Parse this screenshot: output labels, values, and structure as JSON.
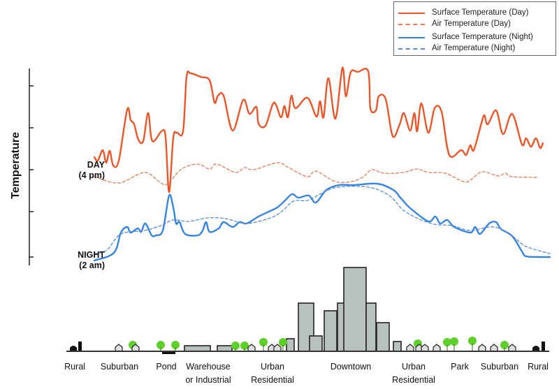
{
  "legend": {
    "items": [
      {
        "label": "Surface Temperature (Day)",
        "color": "#e8562a",
        "style": "solid"
      },
      {
        "label": "Air Temperature  (Day)",
        "color": "#e27a58",
        "style": "dashed"
      },
      {
        "label": "Surface Temperature (Night)",
        "color": "#3684e0",
        "style": "solid"
      },
      {
        "label": "Air Temperature (Night)",
        "color": "#5a8ad6",
        "style": "dashed"
      }
    ]
  },
  "axis": {
    "ylabel": "Temperature",
    "day_label": [
      "DAY",
      "(4 pm)"
    ],
    "night_label": [
      "NIGHT",
      "(2 am)"
    ]
  },
  "zones": [
    {
      "lines": [
        "Rural"
      ]
    },
    {
      "lines": [
        "Suburban"
      ]
    },
    {
      "lines": [
        "Pond"
      ]
    },
    {
      "lines": [
        "Warehouse",
        "or Industrial"
      ]
    },
    {
      "lines": [
        "Urban",
        "Residential"
      ]
    },
    {
      "lines": [
        "Downtown"
      ]
    },
    {
      "lines": [
        "Urban",
        "Residential"
      ]
    },
    {
      "lines": [
        "Park"
      ]
    },
    {
      "lines": [
        "Suburban"
      ]
    },
    {
      "lines": [
        "Rural"
      ]
    }
  ],
  "colors": {
    "building_fill": "#b9c1c0",
    "building_stroke": "#222222",
    "tree": "#5fcf2a"
  },
  "chart_data": {
    "type": "line",
    "xlabel": "",
    "ylabel": "Temperature",
    "xlim": [
      0,
      130.4
    ],
    "ylim": [
      -4,
      112
    ],
    "yticks": [
      0,
      26,
      50,
      74,
      98
    ],
    "grid": false,
    "legend_position": "top-right",
    "series": [
      {
        "name": "Surface Temperature (Day)",
        "points": [
          [
            0,
            57.2
          ],
          [
            1,
            55.2
          ],
          [
            2.4,
            61.2
          ],
          [
            3.4,
            54
          ],
          [
            4.4,
            60.8
          ],
          [
            5.4,
            52.4
          ],
          [
            7,
            55.2
          ],
          [
            9.4,
            84.4
          ],
          [
            10.4,
            78.4
          ],
          [
            11.4,
            76
          ],
          [
            12.6,
            67.2
          ],
          [
            14,
            66.4
          ],
          [
            15.4,
            82.4
          ],
          [
            16.6,
            66.4
          ],
          [
            19.4,
            72.4
          ],
          [
            20.4,
            68.4
          ],
          [
            21.4,
            37.2
          ],
          [
            22.6,
            68.4
          ],
          [
            23.6,
            71.2
          ],
          [
            25.4,
            72
          ],
          [
            26.4,
            103.2
          ],
          [
            27.6,
            105.2
          ],
          [
            30.4,
            103.2
          ],
          [
            33,
            101.2
          ],
          [
            34.4,
            88.4
          ],
          [
            35.4,
            92.4
          ],
          [
            37,
            92.4
          ],
          [
            39.6,
            72.4
          ],
          [
            42.6,
            90
          ],
          [
            44.4,
            82
          ],
          [
            46.4,
            86
          ],
          [
            47,
            76.4
          ],
          [
            49,
            75.2
          ],
          [
            51.4,
            88.4
          ],
          [
            53.4,
            80
          ],
          [
            54.4,
            86.4
          ],
          [
            55.4,
            80
          ],
          [
            56.4,
            92.4
          ],
          [
            57.6,
            85.2
          ],
          [
            61,
            91.2
          ],
          [
            63.6,
            80.4
          ],
          [
            64.6,
            89.2
          ],
          [
            65.6,
            80
          ],
          [
            67,
            102.4
          ],
          [
            69,
            79.2
          ],
          [
            71,
            108.4
          ],
          [
            72,
            92
          ],
          [
            73.4,
            106
          ],
          [
            75.4,
            106
          ],
          [
            78.4,
            106.4
          ],
          [
            79,
            85.2
          ],
          [
            80.6,
            84
          ],
          [
            81.4,
            92
          ],
          [
            83.4,
            90.4
          ],
          [
            85.4,
            69.2
          ],
          [
            87.4,
            76
          ],
          [
            88.6,
            82.4
          ],
          [
            90.4,
            72.4
          ],
          [
            91.6,
            82.4
          ],
          [
            92.4,
            72
          ],
          [
            93.6,
            88
          ],
          [
            95.6,
            71.2
          ],
          [
            97.4,
            85.2
          ],
          [
            99.4,
            83.2
          ],
          [
            101.6,
            58.4
          ],
          [
            105,
            61.2
          ],
          [
            106.4,
            58.4
          ],
          [
            107.6,
            64
          ],
          [
            108.6,
            61.2
          ],
          [
            110.6,
            75.2
          ],
          [
            111.6,
            81.2
          ],
          [
            112.6,
            76
          ],
          [
            115,
            84
          ],
          [
            117,
            70.4
          ],
          [
            119.6,
            82
          ],
          [
            122.4,
            64.4
          ],
          [
            123.6,
            68
          ],
          [
            125,
            63.2
          ],
          [
            126.4,
            68
          ],
          [
            127.6,
            62.4
          ],
          [
            128.4,
            65.2
          ]
        ]
      },
      {
        "name": "Air Temperature  (Day)",
        "points": [
          [
            0,
            46
          ],
          [
            7,
            42.4
          ],
          [
            14.4,
            48.4
          ],
          [
            19,
            42.4
          ],
          [
            21,
            42
          ],
          [
            25,
            50.4
          ],
          [
            29.6,
            53.2
          ],
          [
            33,
            50.4
          ],
          [
            35,
            53.2
          ],
          [
            40.4,
            48.4
          ],
          [
            43,
            51.2
          ],
          [
            45.6,
            50
          ],
          [
            52.4,
            54
          ],
          [
            55.6,
            51.2
          ],
          [
            61,
            46
          ],
          [
            63.4,
            49.2
          ],
          [
            69,
            43.2
          ],
          [
            73.6,
            43.2
          ],
          [
            77,
            46
          ],
          [
            79.4,
            50
          ],
          [
            83,
            48
          ],
          [
            88.4,
            48.4
          ],
          [
            92.4,
            50.4
          ],
          [
            95.6,
            48.4
          ],
          [
            100.4,
            48
          ],
          [
            105.6,
            43.2
          ],
          [
            107.6,
            44
          ],
          [
            111,
            48.8
          ],
          [
            115.6,
            46.4
          ],
          [
            117.6,
            48
          ],
          [
            119.6,
            46
          ],
          [
            127,
            45.6
          ]
        ]
      },
      {
        "name": "Surface Temperature (Night)",
        "points": [
          [
            0,
            -2
          ],
          [
            5.6,
            2.4
          ],
          [
            7.6,
            14
          ],
          [
            9.4,
            17.2
          ],
          [
            10.4,
            14
          ],
          [
            12.4,
            16.4
          ],
          [
            13.4,
            14.4
          ],
          [
            14.6,
            19.2
          ],
          [
            16.4,
            12.4
          ],
          [
            17.6,
            12.4
          ],
          [
            19.6,
            15.2
          ],
          [
            21.4,
            35.2
          ],
          [
            22.6,
            28.4
          ],
          [
            23.4,
            19.2
          ],
          [
            24.4,
            20
          ],
          [
            26,
            13.2
          ],
          [
            29.6,
            12.4
          ],
          [
            31,
            15.2
          ],
          [
            32,
            20
          ],
          [
            33,
            14.4
          ],
          [
            35.6,
            16.4
          ],
          [
            37,
            20
          ],
          [
            39.6,
            17.2
          ],
          [
            41.6,
            20
          ],
          [
            43.6,
            19.2
          ],
          [
            47,
            23.2
          ],
          [
            50.4,
            26.4
          ],
          [
            52.4,
            28.4
          ],
          [
            54.4,
            32
          ],
          [
            56.6,
            36
          ],
          [
            58.4,
            34
          ],
          [
            61.4,
            35.2
          ],
          [
            63.4,
            31.2
          ],
          [
            66.4,
            38.4
          ],
          [
            70,
            41.2
          ],
          [
            74.4,
            41.2
          ],
          [
            81,
            42
          ],
          [
            85.6,
            38.4
          ],
          [
            87.6,
            34
          ],
          [
            90.4,
            28
          ],
          [
            95.6,
            20.4
          ],
          [
            97.6,
            23.2
          ],
          [
            99,
            19.2
          ],
          [
            101,
            21.2
          ],
          [
            103,
            17.2
          ],
          [
            107.6,
            14
          ],
          [
            109,
            17.2
          ],
          [
            110.4,
            13.2
          ],
          [
            113,
            19.2
          ],
          [
            115,
            20
          ],
          [
            116.4,
            16
          ],
          [
            119.6,
            12
          ],
          [
            122.4,
            3.2
          ],
          [
            123.6,
            0.4
          ],
          [
            127.6,
            0
          ],
          [
            130.4,
            0
          ]
        ]
      },
      {
        "name": "Air Temperature (Night)",
        "points": [
          [
            0,
            2
          ],
          [
            3.6,
            4
          ],
          [
            7.6,
            13.2
          ],
          [
            14.4,
            15.2
          ],
          [
            19,
            18
          ],
          [
            22.6,
            21.2
          ],
          [
            27,
            20.4
          ],
          [
            32.4,
            22.4
          ],
          [
            37.6,
            22
          ],
          [
            43.6,
            19.2
          ],
          [
            50.4,
            22.4
          ],
          [
            53.6,
            26
          ],
          [
            57,
            32
          ],
          [
            61,
            32.4
          ],
          [
            65,
            36.4
          ],
          [
            69.6,
            40
          ],
          [
            78.4,
            40
          ],
          [
            84.4,
            35.2
          ],
          [
            89,
            26
          ],
          [
            96.4,
            19.2
          ],
          [
            102.4,
            18
          ],
          [
            107.6,
            15.2
          ],
          [
            114.4,
            17.2
          ],
          [
            119.6,
            12
          ],
          [
            123.6,
            6
          ],
          [
            130.4,
            2
          ]
        ]
      }
    ]
  }
}
